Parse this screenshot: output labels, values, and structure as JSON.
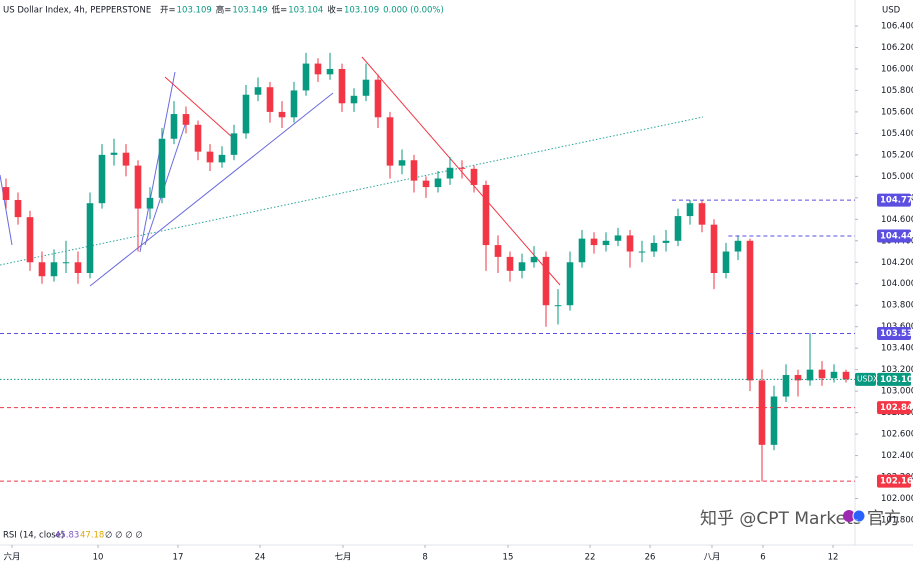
{
  "header": {
    "symbol": "US Dollar Index, 4h, PEPPERSTONE",
    "ohlc": [
      {
        "key": "开=",
        "value": "103.109"
      },
      {
        "key": "高=",
        "value": "103.149"
      },
      {
        "key": "低=",
        "value": "103.104"
      },
      {
        "key": "收=",
        "value": "103.109"
      }
    ],
    "change": "0.000 (0.00%)",
    "currency": "USD"
  },
  "rsi": {
    "label": "RSI (14, close)",
    "values": [
      "45.83",
      "47.18"
    ],
    "extra": "∅ ∅ ∅ ∅"
  },
  "watermark": "知乎 @CPT Markets 官方",
  "chart_data": {
    "type": "candlestick",
    "up_color": "#089981",
    "down_color": "#f23645",
    "x": [
      0,
      1,
      2,
      3,
      4,
      5,
      6,
      7,
      8,
      9,
      10,
      11,
      12,
      13,
      14,
      15,
      16,
      17,
      18,
      19,
      20,
      21,
      22,
      23,
      24,
      25,
      26,
      27,
      28,
      29,
      30,
      31,
      32,
      33,
      34,
      35,
      36,
      37,
      38,
      39,
      40,
      41,
      42,
      43,
      44,
      45,
      46,
      47,
      48,
      49,
      50,
      51,
      52,
      53,
      54,
      55,
      56,
      57,
      58,
      59,
      60,
      61,
      62,
      63,
      64,
      65,
      66,
      67,
      68,
      69,
      70
    ],
    "candles": [
      [
        104.9,
        104.98,
        104.7,
        104.78
      ],
      [
        104.78,
        104.85,
        104.55,
        104.62
      ],
      [
        104.62,
        104.68,
        104.12,
        104.2
      ],
      [
        104.2,
        104.3,
        104.0,
        104.07
      ],
      [
        104.07,
        104.32,
        104.02,
        104.2
      ],
      [
        104.2,
        104.4,
        104.1,
        104.2
      ],
      [
        104.2,
        104.3,
        104.0,
        104.1
      ],
      [
        104.1,
        104.85,
        104.05,
        104.75
      ],
      [
        104.75,
        105.3,
        104.7,
        105.2
      ],
      [
        105.2,
        105.35,
        105.1,
        105.22
      ],
      [
        105.22,
        105.3,
        105.0,
        105.1
      ],
      [
        105.1,
        105.15,
        104.3,
        104.7
      ],
      [
        104.7,
        104.9,
        104.6,
        104.8
      ],
      [
        104.8,
        105.45,
        104.75,
        105.35
      ],
      [
        105.35,
        105.7,
        105.3,
        105.58
      ],
      [
        105.58,
        105.65,
        105.4,
        105.48
      ],
      [
        105.48,
        105.52,
        105.15,
        105.23
      ],
      [
        105.23,
        105.3,
        105.05,
        105.13
      ],
      [
        105.13,
        105.28,
        105.08,
        105.2
      ],
      [
        105.2,
        105.48,
        105.15,
        105.4
      ],
      [
        105.4,
        105.85,
        105.35,
        105.76
      ],
      [
        105.76,
        105.92,
        105.7,
        105.83
      ],
      [
        105.83,
        105.88,
        105.5,
        105.6
      ],
      [
        105.6,
        105.7,
        105.45,
        105.55
      ],
      [
        105.55,
        105.88,
        105.5,
        105.8
      ],
      [
        105.8,
        106.15,
        105.75,
        106.05
      ],
      [
        106.05,
        106.1,
        105.88,
        105.95
      ],
      [
        105.95,
        106.15,
        105.9,
        106.0
      ],
      [
        106.0,
        106.05,
        105.6,
        105.68
      ],
      [
        105.68,
        105.82,
        105.6,
        105.75
      ],
      [
        105.75,
        106.05,
        105.7,
        105.9
      ],
      [
        105.9,
        105.95,
        105.45,
        105.55
      ],
      [
        105.55,
        105.6,
        104.98,
        105.1
      ],
      [
        105.1,
        105.25,
        105.02,
        105.15
      ],
      [
        105.15,
        105.2,
        104.85,
        104.96
      ],
      [
        104.96,
        105.0,
        104.8,
        104.9
      ],
      [
        104.9,
        105.05,
        104.85,
        104.98
      ],
      [
        104.98,
        105.18,
        104.92,
        105.08
      ],
      [
        105.08,
        105.15,
        104.98,
        105.07
      ],
      [
        105.07,
        105.1,
        104.85,
        104.92
      ],
      [
        104.92,
        104.96,
        104.12,
        104.36
      ],
      [
        104.36,
        104.45,
        104.1,
        104.25
      ],
      [
        104.25,
        104.3,
        104.02,
        104.12
      ],
      [
        104.12,
        104.28,
        104.05,
        104.2
      ],
      [
        104.2,
        104.35,
        104.15,
        104.25
      ],
      [
        104.25,
        104.3,
        103.6,
        103.8
      ],
      [
        103.8,
        103.95,
        103.62,
        103.8
      ],
      [
        103.8,
        104.3,
        103.75,
        104.2
      ],
      [
        104.2,
        104.5,
        104.15,
        104.42
      ],
      [
        104.42,
        104.48,
        104.28,
        104.36
      ],
      [
        104.36,
        104.48,
        104.3,
        104.4
      ],
      [
        104.4,
        104.52,
        104.35,
        104.45
      ],
      [
        104.45,
        104.5,
        104.15,
        104.3
      ],
      [
        104.3,
        104.4,
        104.2,
        104.3
      ],
      [
        104.3,
        104.45,
        104.25,
        104.38
      ],
      [
        104.38,
        104.5,
        104.3,
        104.4
      ],
      [
        104.4,
        104.7,
        104.35,
        104.63
      ],
      [
        104.63,
        104.78,
        104.55,
        104.75
      ],
      [
        104.75,
        104.78,
        104.48,
        104.55
      ],
      [
        104.55,
        104.6,
        103.95,
        104.1
      ],
      [
        104.1,
        104.38,
        104.05,
        104.3
      ],
      [
        104.3,
        104.45,
        104.22,
        104.4
      ],
      [
        104.4,
        104.42,
        103.0,
        103.1
      ],
      [
        103.1,
        103.2,
        102.16,
        102.5
      ],
      [
        102.5,
        103.05,
        102.45,
        102.95
      ],
      [
        102.95,
        103.25,
        102.9,
        103.15
      ],
      [
        103.15,
        103.2,
        102.95,
        103.1
      ],
      [
        103.1,
        103.54,
        103.05,
        103.2
      ],
      [
        103.2,
        103.28,
        103.05,
        103.12
      ],
      [
        103.12,
        103.25,
        103.08,
        103.18
      ],
      [
        103.18,
        103.2,
        103.08,
        103.11
      ]
    ],
    "xlim": [
      -0.5,
      70.75
    ],
    "ylim": [
      101.707,
      106.642
    ],
    "xticks": [
      {
        "value": 0.5,
        "label": "六月"
      },
      {
        "value": 7.67,
        "label": "10"
      },
      {
        "value": 14.33,
        "label": "17"
      },
      {
        "value": 21.17,
        "label": "24"
      },
      {
        "value": 28.08,
        "label": "七月"
      },
      {
        "value": 34.92,
        "label": "8"
      },
      {
        "value": 41.83,
        "label": "15"
      },
      {
        "value": 48.67,
        "label": "22"
      },
      {
        "value": 53.67,
        "label": "26"
      },
      {
        "value": 58.83,
        "label": "八月"
      },
      {
        "value": 63.08,
        "label": "6"
      },
      {
        "value": 68.92,
        "label": "12"
      }
    ],
    "yticks": [
      {
        "value": 101.8,
        "label": "101.800"
      },
      {
        "value": 102.0,
        "label": "102.000"
      },
      {
        "value": 102.2,
        "label": "102.200"
      },
      {
        "value": 102.4,
        "label": "102.400"
      },
      {
        "value": 102.6,
        "label": "102.600"
      },
      {
        "value": 102.8,
        "label": "102.800"
      },
      {
        "value": 103.0,
        "label": "103.000"
      },
      {
        "value": 103.2,
        "label": "103.200"
      },
      {
        "value": 103.4,
        "label": "103.400"
      },
      {
        "value": 103.6,
        "label": "103.600"
      },
      {
        "value": 103.8,
        "label": "103.800"
      },
      {
        "value": 104.0,
        "label": "104.000"
      },
      {
        "value": 104.2,
        "label": "104.200"
      },
      {
        "value": 104.4,
        "label": "104.400"
      },
      {
        "value": 104.6,
        "label": "104.600"
      },
      {
        "value": 104.8,
        "label": "104.800"
      },
      {
        "value": 105.0,
        "label": "105.000"
      },
      {
        "value": 105.2,
        "label": "105.200"
      },
      {
        "value": 105.4,
        "label": "105.400"
      },
      {
        "value": 105.6,
        "label": "105.600"
      },
      {
        "value": 105.8,
        "label": "105.800"
      },
      {
        "value": 106.0,
        "label": "106.000"
      },
      {
        "value": 106.2,
        "label": "106.200"
      },
      {
        "value": 106.4,
        "label": "106.400"
      }
    ],
    "levels": [
      {
        "value": 104.778,
        "color": "#5b4ee0",
        "from": 55.5
      },
      {
        "value": 104.444,
        "color": "#5b4ee0",
        "from": 60.2
      },
      {
        "value": 103.537,
        "color": "#5b4ee0"
      },
      {
        "value": 103.109,
        "color": "#089981",
        "name": "USDX"
      },
      {
        "value": 102.847,
        "color": "#f23645"
      },
      {
        "value": 102.162,
        "color": "#f23645"
      }
    ]
  }
}
